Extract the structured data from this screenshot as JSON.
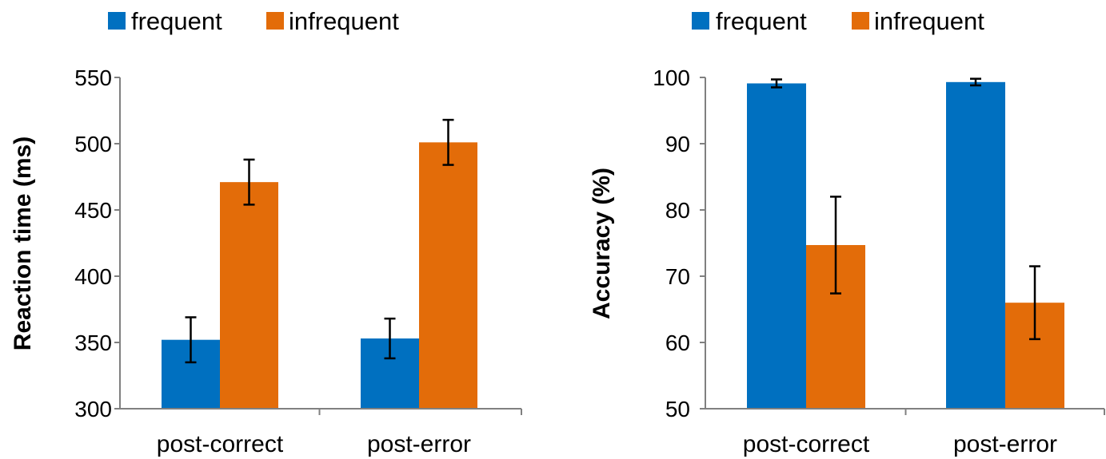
{
  "chart_data": [
    {
      "type": "bar",
      "categories": [
        "post-correct",
        "post-error"
      ],
      "series": [
        {
          "name": "frequent",
          "color": "#0070C0",
          "values": [
            352,
            353
          ],
          "errors": [
            17,
            15
          ]
        },
        {
          "name": "infrequent",
          "color": "#E36C09",
          "values": [
            471,
            501
          ],
          "errors": [
            17,
            17
          ]
        }
      ],
      "ylabel": "Reaction time (ms)",
      "ylim": [
        300,
        550
      ],
      "yticks": [
        "300",
        "350",
        "400",
        "450",
        "500",
        "550"
      ],
      "ytick_values": [
        300,
        350,
        400,
        450,
        500,
        550
      ],
      "grid": false,
      "legend": "top-left"
    },
    {
      "type": "bar",
      "categories": [
        "post-correct",
        "post-error"
      ],
      "series": [
        {
          "name": "frequent",
          "color": "#0070C0",
          "values": [
            99.1,
            99.3
          ],
          "errors": [
            0.6,
            0.5
          ]
        },
        {
          "name": "infrequent",
          "color": "#E36C09",
          "values": [
            74.7,
            66.0
          ],
          "errors": [
            7.3,
            5.5
          ]
        }
      ],
      "ylabel": "Accuracy (%)",
      "ylim": [
        50,
        100
      ],
      "yticks": [
        "50",
        "60",
        "70",
        "80",
        "90",
        "100"
      ],
      "ytick_values": [
        50,
        60,
        70,
        80,
        90,
        100
      ],
      "grid": false,
      "legend": "top-left"
    }
  ]
}
